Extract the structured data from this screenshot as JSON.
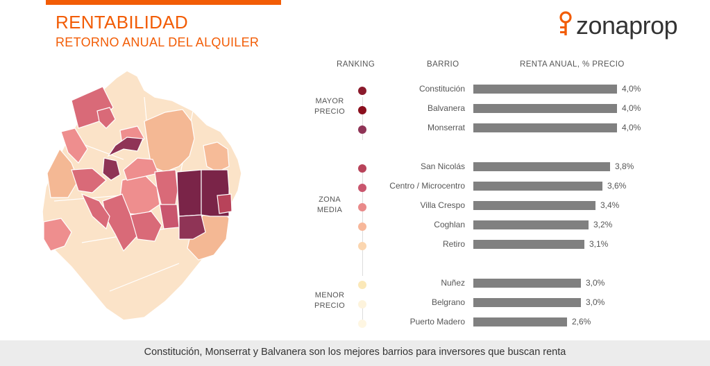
{
  "header": {
    "title": "RENTABILIDAD",
    "subtitle": "RETORNO ANUAL DEL ALQUILER"
  },
  "logo": {
    "text": "zonaprop",
    "icon": "key-pin-icon",
    "color": "#f25c05"
  },
  "table": {
    "col_ranking": "RANKING",
    "col_barrio": "BARRIO",
    "col_renta": "RENTA ANUAL, % PRECIO"
  },
  "groups": {
    "mayor": [
      "MAYOR",
      "PRECIO"
    ],
    "media": [
      "ZONA",
      "MEDIA"
    ],
    "menor": [
      "MENOR",
      "PRECIO"
    ]
  },
  "chart_data": {
    "type": "bar",
    "orientation": "horizontal",
    "xlabel": "RENTA ANUAL, % PRECIO",
    "categories": [
      "Constitución",
      "Balvanera",
      "Monserrat",
      "San Nicolás",
      "Centro / Microcentro",
      "Villa Crespo",
      "Coghlan",
      "Retiro",
      "Nuñez",
      "Belgrano",
      "Puerto Madero"
    ],
    "values": [
      4.0,
      4.0,
      4.0,
      3.8,
      3.6,
      3.4,
      3.2,
      3.1,
      3.0,
      3.0,
      2.6
    ],
    "value_labels": [
      "4,0%",
      "4,0%",
      "4,0%",
      "3,8%",
      "3,6%",
      "3,4%",
      "3,2%",
      "3,1%",
      "3,0%",
      "3,0%",
      "2,6%"
    ],
    "rank_colors": [
      "#8b1a2c",
      "#8b0f1e",
      "#8f3456",
      "#b8435a",
      "#c9566e",
      "#e98a8a",
      "#f7b79a",
      "#fbd6b0",
      "#fbe8b8",
      "#fdf3dc",
      "#fef6e2"
    ],
    "bar_color": "#808080",
    "xlim": [
      0,
      4.0
    ]
  },
  "footer": {
    "text": "Constitución, Monserrat y Balvanera son los mejores barrios para inversores que buscan renta"
  }
}
